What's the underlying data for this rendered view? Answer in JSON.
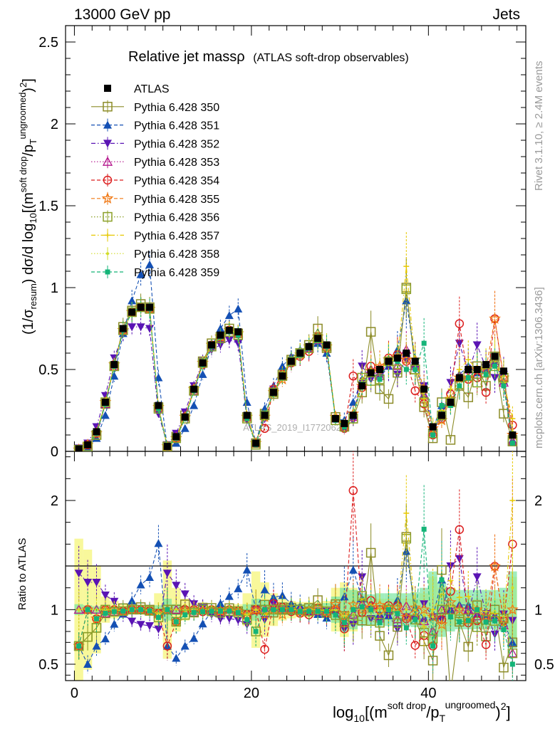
{
  "header": {
    "left": "13000 GeV pp",
    "right": "Jets"
  },
  "side_texts": {
    "rivet": "Rivet 3.1.10, ≥ 2.4M events",
    "mcplots": "mcplots.cern.ch [arXiv:1306.3436]"
  },
  "watermark": "ATLAS_2019_I1772062",
  "chart_data": {
    "type": "scatter",
    "title": "Relative jet massρ",
    "subtitle": "(ATLAS soft-drop observables)",
    "xlabel": "log10[(m^soft drop/pT^ungroomed)^2]",
    "ylabel_top": "(1/σresum) dσ/d log10[(m^soft drop/pT^ungroomed)^2]",
    "ylabel_ratio": "Ratio to ATLAS",
    "xlim": [
      -1,
      51
    ],
    "ylim_top": [
      0,
      2.6
    ],
    "ylim_ratio": [
      0.35,
      2.45
    ],
    "xticks": [
      "0",
      "20",
      "40"
    ],
    "yticks_top": [
      "0",
      "0.5",
      "1",
      "1.5",
      "2",
      "2.5"
    ],
    "yticks_ratio": [
      "0.5",
      "1",
      "2"
    ],
    "legend_position": "top-left",
    "x": [
      0.5,
      1.5,
      2.5,
      3.5,
      4.5,
      5.5,
      6.5,
      7.5,
      8.5,
      9.5,
      10.5,
      11.5,
      12.5,
      13.5,
      14.5,
      15.5,
      16.5,
      17.5,
      18.5,
      19.5,
      20.5,
      21.5,
      22.5,
      23.5,
      24.5,
      25.5,
      26.5,
      27.5,
      28.5,
      29.5,
      30.5,
      31.5,
      32.5,
      33.5,
      34.5,
      35.5,
      36.5,
      37.5,
      38.5,
      39.5,
      40.5,
      41.5,
      42.5,
      43.5,
      44.5,
      45.5,
      46.5,
      47.5,
      48.5,
      49.5
    ],
    "series": [
      {
        "name": "ATLAS",
        "color": "#000000",
        "marker": "square-filled",
        "line": "none",
        "values": [
          0.015,
          0.04,
          0.12,
          0.3,
          0.53,
          0.75,
          0.85,
          0.88,
          0.88,
          0.28,
          0.03,
          0.09,
          0.21,
          0.38,
          0.54,
          0.65,
          0.71,
          0.74,
          0.73,
          0.22,
          0.05,
          0.22,
          0.36,
          0.46,
          0.55,
          0.6,
          0.64,
          0.69,
          0.65,
          0.2,
          0.17,
          0.22,
          0.4,
          0.48,
          0.5,
          0.55,
          0.57,
          0.6,
          0.55,
          0.38,
          0.15,
          0.22,
          0.3,
          0.45,
          0.5,
          0.5,
          0.53,
          0.58,
          0.49,
          0.1
        ]
      },
      {
        "name": "Pythia 6.428 350",
        "color": "#8c8c28",
        "marker": "square-open",
        "line": "solid",
        "values": [
          0.01,
          0.03,
          0.1,
          0.29,
          0.52,
          0.76,
          0.86,
          0.9,
          0.88,
          0.27,
          0.03,
          0.09,
          0.22,
          0.37,
          0.55,
          0.66,
          0.7,
          0.75,
          0.72,
          0.21,
          0.05,
          0.23,
          0.35,
          0.47,
          0.56,
          0.6,
          0.65,
          0.75,
          0.63,
          0.21,
          0.16,
          0.2,
          0.36,
          0.73,
          0.38,
          0.32,
          0.48,
          1.0,
          0.5,
          0.27,
          0.08,
          0.3,
          0.07,
          0.4,
          0.33,
          0.52,
          0.4,
          0.58,
          0.23,
          0.07
        ]
      },
      {
        "name": "Pythia 6.428 351",
        "color": "#1450b4",
        "marker": "triangle-up",
        "line": "dashed",
        "values": [
          0.01,
          0.02,
          0.08,
          0.22,
          0.46,
          0.72,
          0.92,
          1.08,
          1.14,
          0.45,
          0.02,
          0.05,
          0.14,
          0.28,
          0.47,
          0.64,
          0.75,
          0.83,
          0.87,
          0.3,
          0.05,
          0.26,
          0.4,
          0.52,
          0.58,
          0.62,
          0.63,
          0.66,
          0.6,
          0.2,
          0.19,
          0.3,
          0.44,
          0.5,
          0.48,
          0.52,
          0.62,
          0.92,
          0.56,
          0.35,
          0.14,
          0.28,
          0.3,
          0.47,
          0.52,
          0.48,
          0.5,
          0.55,
          0.43,
          0.07
        ]
      },
      {
        "name": "Pythia 6.428 352",
        "color": "#5a14b4",
        "marker": "triangle-down",
        "line": "dashdot",
        "values": [
          0.02,
          0.05,
          0.15,
          0.34,
          0.57,
          0.72,
          0.76,
          0.76,
          0.75,
          0.23,
          0.04,
          0.11,
          0.24,
          0.4,
          0.55,
          0.62,
          0.65,
          0.68,
          0.66,
          0.19,
          0.05,
          0.2,
          0.38,
          0.46,
          0.54,
          0.58,
          0.62,
          0.68,
          0.64,
          0.2,
          0.14,
          0.19,
          0.52,
          0.44,
          0.45,
          0.52,
          0.47,
          0.56,
          0.5,
          0.4,
          0.14,
          0.2,
          0.42,
          0.66,
          0.48,
          0.65,
          0.51,
          0.45,
          0.47,
          0.09
        ]
      },
      {
        "name": "Pythia 6.428 353",
        "color": "#b4148c",
        "marker": "triangle-open",
        "line": "dotted",
        "values": [
          0.015,
          0.04,
          0.12,
          0.29,
          0.52,
          0.74,
          0.85,
          0.88,
          0.87,
          0.27,
          0.03,
          0.09,
          0.21,
          0.37,
          0.54,
          0.65,
          0.7,
          0.74,
          0.72,
          0.21,
          0.05,
          0.22,
          0.37,
          0.46,
          0.55,
          0.6,
          0.63,
          0.68,
          0.64,
          0.2,
          0.15,
          0.21,
          0.42,
          0.5,
          0.46,
          0.56,
          0.52,
          0.62,
          0.52,
          0.34,
          0.12,
          0.22,
          0.3,
          0.46,
          0.5,
          0.47,
          0.5,
          0.54,
          0.42,
          0.06
        ]
      },
      {
        "name": "Pythia 6.428 354",
        "color": "#dc1e1e",
        "marker": "circle-open",
        "line": "dashed",
        "values": [
          0.01,
          0.04,
          0.11,
          0.3,
          0.53,
          0.74,
          0.85,
          0.88,
          0.87,
          0.27,
          0.02,
          0.08,
          0.21,
          0.38,
          0.53,
          0.65,
          0.7,
          0.74,
          0.72,
          0.21,
          0.05,
          0.14,
          0.38,
          0.47,
          0.54,
          0.58,
          0.61,
          0.7,
          0.63,
          0.2,
          0.14,
          0.46,
          0.39,
          0.52,
          0.5,
          0.57,
          0.59,
          0.55,
          0.37,
          0.29,
          0.1,
          0.2,
          0.35,
          0.78,
          0.44,
          0.45,
          0.36,
          0.81,
          0.44,
          0.16
        ]
      },
      {
        "name": "Pythia 6.428 355",
        "color": "#f07814",
        "marker": "star",
        "line": "dashed",
        "values": [
          0.01,
          0.04,
          0.11,
          0.3,
          0.53,
          0.74,
          0.85,
          0.88,
          0.87,
          0.27,
          0.03,
          0.08,
          0.21,
          0.38,
          0.54,
          0.65,
          0.7,
          0.74,
          0.72,
          0.21,
          0.05,
          0.21,
          0.36,
          0.44,
          0.55,
          0.59,
          0.64,
          0.7,
          0.64,
          0.21,
          0.16,
          0.23,
          0.4,
          0.49,
          0.52,
          0.56,
          0.58,
          0.56,
          0.56,
          0.38,
          0.14,
          0.19,
          0.32,
          0.45,
          0.45,
          0.5,
          0.5,
          0.81,
          0.45,
          0.1
        ]
      },
      {
        "name": "Pythia 6.428 356",
        "color": "#8ca028",
        "marker": "square-open",
        "line": "dotted",
        "values": [
          0.01,
          0.03,
          0.1,
          0.3,
          0.52,
          0.74,
          0.85,
          0.88,
          0.87,
          0.26,
          0.03,
          0.08,
          0.2,
          0.37,
          0.54,
          0.64,
          0.69,
          0.73,
          0.71,
          0.2,
          0.04,
          0.22,
          0.36,
          0.46,
          0.55,
          0.6,
          0.63,
          0.69,
          0.64,
          0.19,
          0.15,
          0.2,
          0.45,
          0.43,
          0.44,
          0.55,
          0.5,
          0.99,
          0.5,
          0.3,
          0.11,
          0.22,
          0.3,
          0.41,
          0.46,
          0.42,
          0.48,
          0.52,
          0.45,
          0.06
        ]
      },
      {
        "name": "Pythia 6.428 357",
        "color": "#e6c800",
        "marker": "tick",
        "line": "dashdot",
        "values": [
          0.015,
          0.04,
          0.12,
          0.3,
          0.53,
          0.74,
          0.85,
          0.88,
          0.87,
          0.27,
          0.03,
          0.09,
          0.21,
          0.37,
          0.54,
          0.65,
          0.7,
          0.74,
          0.72,
          0.21,
          0.05,
          0.21,
          0.36,
          0.47,
          0.55,
          0.6,
          0.64,
          0.69,
          0.64,
          0.2,
          0.16,
          0.22,
          0.44,
          0.5,
          0.48,
          0.56,
          0.55,
          1.13,
          0.53,
          0.32,
          0.15,
          0.25,
          0.38,
          0.5,
          0.56,
          0.5,
          0.52,
          0.56,
          0.42,
          0.2
        ]
      },
      {
        "name": "Pythia 6.428 358",
        "color": "#d2dc28",
        "marker": "dot",
        "line": "dotted",
        "values": [
          0.015,
          0.04,
          0.12,
          0.3,
          0.53,
          0.74,
          0.85,
          0.88,
          0.87,
          0.27,
          0.03,
          0.09,
          0.21,
          0.38,
          0.54,
          0.65,
          0.7,
          0.74,
          0.72,
          0.21,
          0.05,
          0.22,
          0.36,
          0.46,
          0.55,
          0.6,
          0.64,
          0.69,
          0.65,
          0.2,
          0.16,
          0.21,
          0.41,
          0.47,
          0.5,
          0.55,
          0.56,
          0.6,
          0.55,
          0.36,
          0.14,
          0.22,
          0.31,
          0.45,
          0.49,
          0.49,
          0.52,
          0.57,
          0.46,
          0.12
        ]
      },
      {
        "name": "Pythia 6.428 359",
        "color": "#14b478",
        "marker": "square-small",
        "line": "dashed",
        "values": [
          0.01,
          0.04,
          0.11,
          0.29,
          0.52,
          0.74,
          0.85,
          0.88,
          0.87,
          0.26,
          0.03,
          0.08,
          0.2,
          0.37,
          0.53,
          0.64,
          0.7,
          0.73,
          0.71,
          0.2,
          0.04,
          0.22,
          0.36,
          0.46,
          0.55,
          0.59,
          0.63,
          0.68,
          0.64,
          0.19,
          0.15,
          0.22,
          0.41,
          0.48,
          0.44,
          0.55,
          0.55,
          0.5,
          0.5,
          0.66,
          0.1,
          0.28,
          0.28,
          0.4,
          0.45,
          0.5,
          0.47,
          0.52,
          0.4,
          0.05
        ]
      }
    ],
    "data_rel_uncertainty": [
      0.65,
      0.55,
      0.4,
      0.12,
      0.08,
      0.05,
      0.04,
      0.03,
      0.04,
      0.15,
      0.45,
      0.2,
      0.1,
      0.06,
      0.05,
      0.04,
      0.04,
      0.04,
      0.05,
      0.15,
      0.35,
      0.25,
      0.15,
      0.1,
      0.08,
      0.07,
      0.07,
      0.07,
      0.08,
      0.2,
      0.25,
      0.2,
      0.12,
      0.1,
      0.1,
      0.1,
      0.1,
      0.1,
      0.1,
      0.15,
      0.3,
      0.2,
      0.15,
      0.12,
      0.1,
      0.1,
      0.1,
      0.1,
      0.12,
      0.3
    ],
    "mc_rel_uncertainty": [
      0.05,
      0.04,
      0.03,
      0.02,
      0.02,
      0.02,
      0.02,
      0.02,
      0.02,
      0.04,
      0.1,
      0.05,
      0.03,
      0.02,
      0.02,
      0.02,
      0.02,
      0.02,
      0.02,
      0.05,
      0.1,
      0.08,
      0.06,
      0.05,
      0.05,
      0.05,
      0.05,
      0.05,
      0.06,
      0.12,
      0.2,
      0.18,
      0.15,
      0.14,
      0.15,
      0.15,
      0.15,
      0.15,
      0.16,
      0.2,
      0.35,
      0.25,
      0.2,
      0.18,
      0.18,
      0.18,
      0.18,
      0.18,
      0.2,
      0.35
    ]
  }
}
